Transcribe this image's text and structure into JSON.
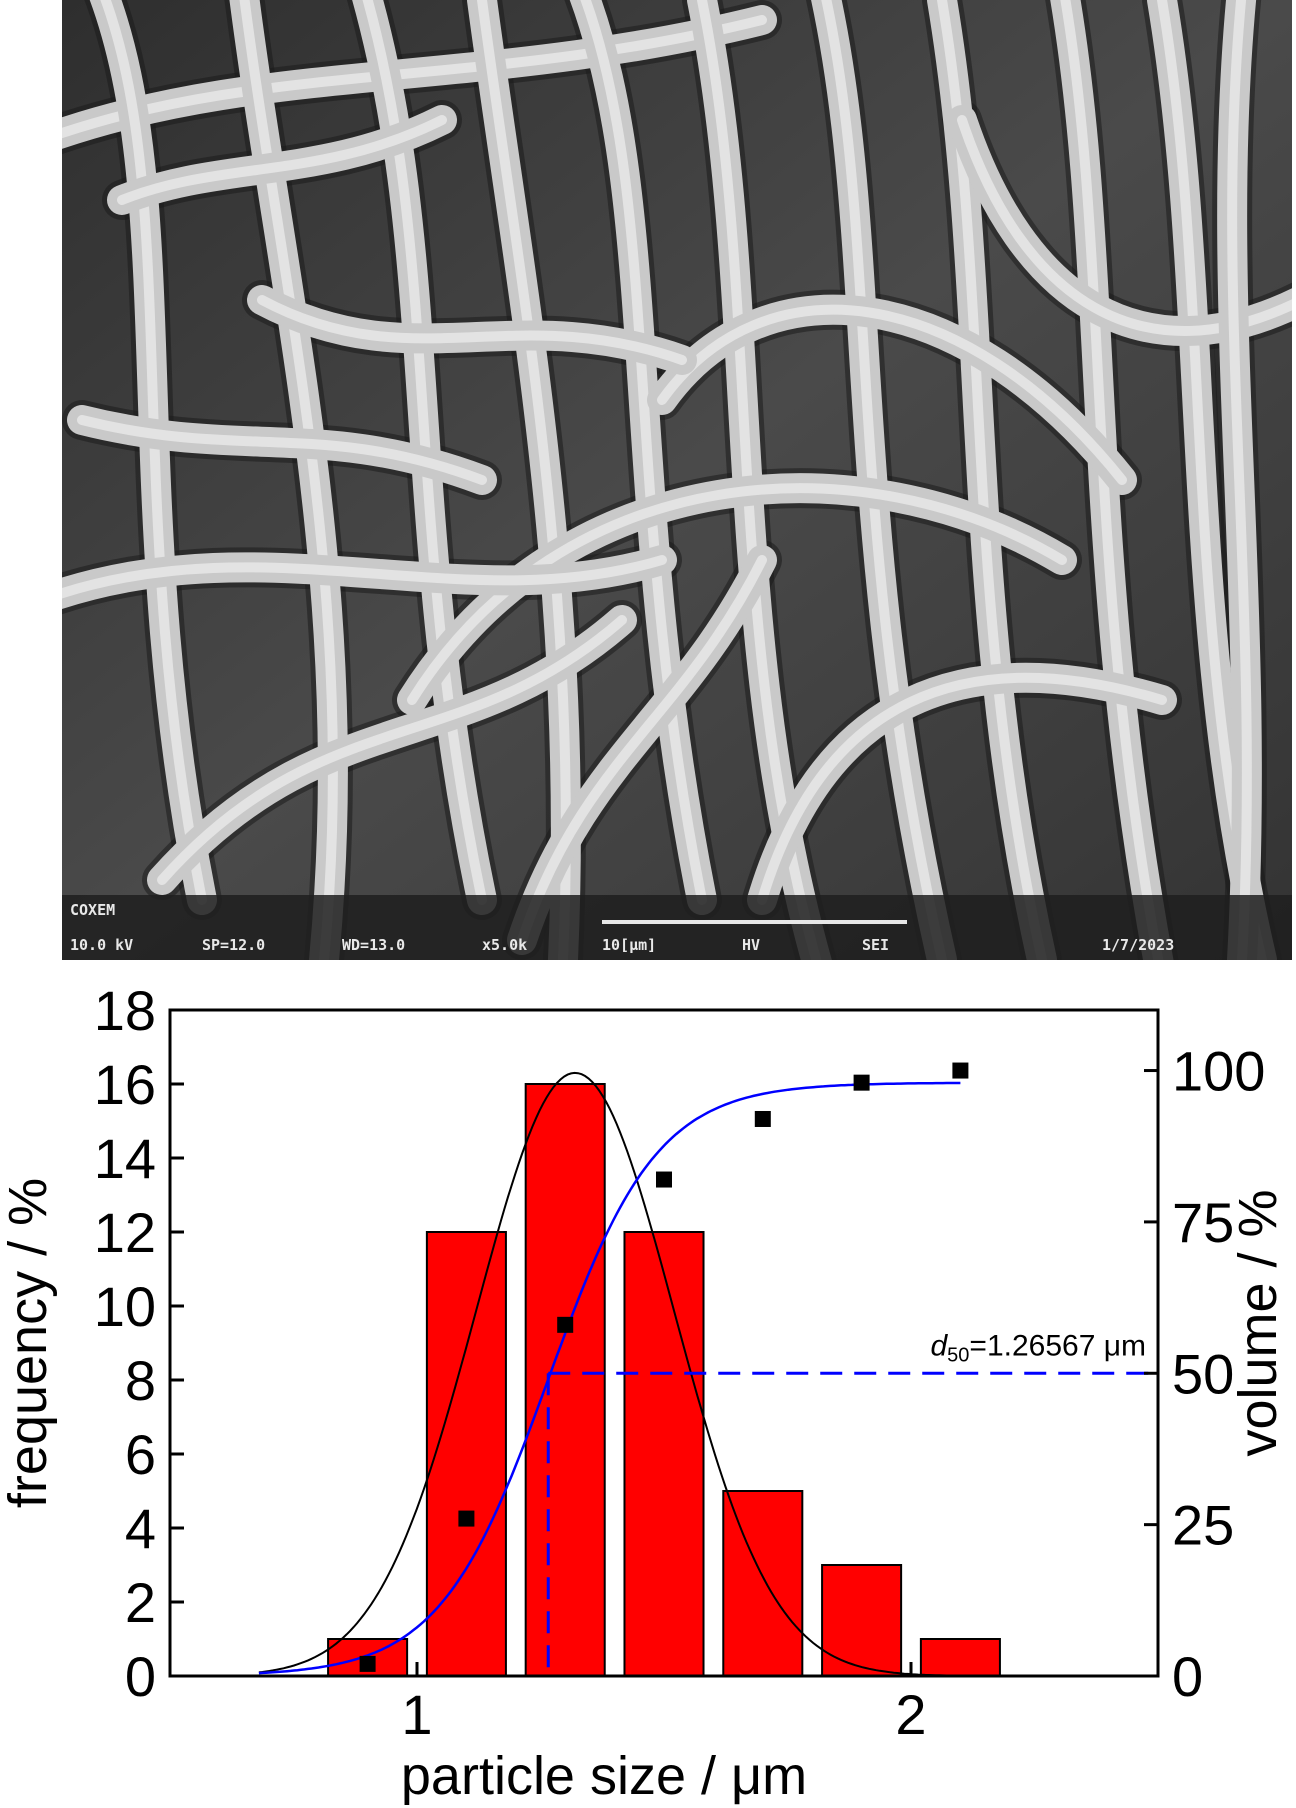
{
  "micrograph": {
    "instrument": "COXEM",
    "info_fields": [
      "10.0 kV",
      "SP=12.0",
      "WD=13.0",
      "x5.0k",
      "10[μm]",
      "HV",
      "SEI",
      "1/7/2023"
    ],
    "colors": {
      "background": "#3a3a3a",
      "fiber": "#c9c9c9",
      "fiber_highlight": "#eeeeee",
      "info_bar": "#202020"
    }
  },
  "chart_data": {
    "type": "bar",
    "title": "",
    "xlabel": "particle size / μm",
    "ylabel": "frequency / %",
    "y2label": "volume / %",
    "xlim": [
      0.5,
      2.5
    ],
    "ylim": [
      0,
      18
    ],
    "y2lim": [
      0,
      110
    ],
    "x_ticks": [
      1,
      2
    ],
    "x_tick_labels": [
      "1",
      "2"
    ],
    "y_ticks": [
      0,
      2,
      4,
      6,
      8,
      10,
      12,
      14,
      16,
      18
    ],
    "y_tick_labels": [
      "0",
      "2",
      "4",
      "6",
      "8",
      "10",
      "12",
      "14",
      "16",
      "18"
    ],
    "y2_ticks": [
      0,
      25,
      50,
      75,
      100
    ],
    "y2_tick_labels": [
      "0",
      "25",
      "50",
      "75",
      "100"
    ],
    "bar_width": 0.16,
    "bars": {
      "x": [
        0.9,
        1.1,
        1.3,
        1.5,
        1.7,
        1.9,
        2.1
      ],
      "values": [
        1,
        12,
        16,
        12,
        5,
        3,
        1
      ],
      "color": "#ff0000"
    },
    "cumulative_points": {
      "x": [
        0.9,
        1.1,
        1.3,
        1.5,
        1.7,
        1.9,
        2.1
      ],
      "values": [
        2,
        26,
        58,
        82,
        92,
        98,
        100
      ],
      "color": "#000000"
    },
    "cumulative_fit": {
      "color": "#0000ff",
      "x_range": [
        0.68,
        2.1
      ],
      "center": 1.26567,
      "scale": 0.11,
      "max": 98
    },
    "frequency_fit": {
      "color": "#000000",
      "x_range": [
        0.68,
        2.1
      ],
      "mean": 1.32,
      "sigma": 0.2,
      "peak": 16.3
    },
    "d50": {
      "label_italic": "d",
      "label_sub": "50",
      "label_rest": "=1.26567 μm",
      "x": 1.26567,
      "y2": 50,
      "color": "#0000ff"
    }
  }
}
